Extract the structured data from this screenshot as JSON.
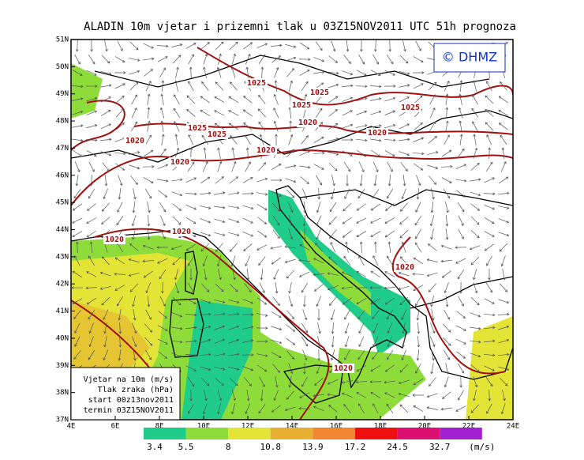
{
  "title": "ALADIN 10m vjetar i prizemni tlak u 03Z15NOV2011 UTC 51h prognoza",
  "copyright": "© DHMZ",
  "lat_labels": [
    "51N",
    "50N",
    "49N",
    "48N",
    "47N",
    "46N",
    "45N",
    "44N",
    "43N",
    "42N",
    "41N",
    "40N",
    "39N",
    "38N",
    "37N"
  ],
  "lon_labels": [
    "4E",
    "6E",
    "8E",
    "10E",
    "12E",
    "14E",
    "16E",
    "18E",
    "20E",
    "22E",
    "24E"
  ],
  "info_box": [
    "Vjetar na 10m (m/s)",
    "Tlak zraka (hPa)",
    "start 00z13nov2011",
    "termin 03Z15NOV2011"
  ],
  "colorbar": {
    "levels": [
      3.4,
      5.5,
      8,
      10.8,
      13.9,
      17.2,
      24.5,
      32.7
    ],
    "unit": "(m/s)",
    "colors": [
      "#1fcc8a",
      "#8ddc3a",
      "#e4e437",
      "#e8b030",
      "#f08830",
      "#ee1010",
      "#dc1070",
      "#a020d0"
    ]
  },
  "isobar_labels": [
    1025,
    1025,
    1025,
    1025,
    1025,
    1025,
    1020,
    1020,
    1020,
    1020,
    1020,
    1020,
    1020,
    1020,
    1020
  ]
}
